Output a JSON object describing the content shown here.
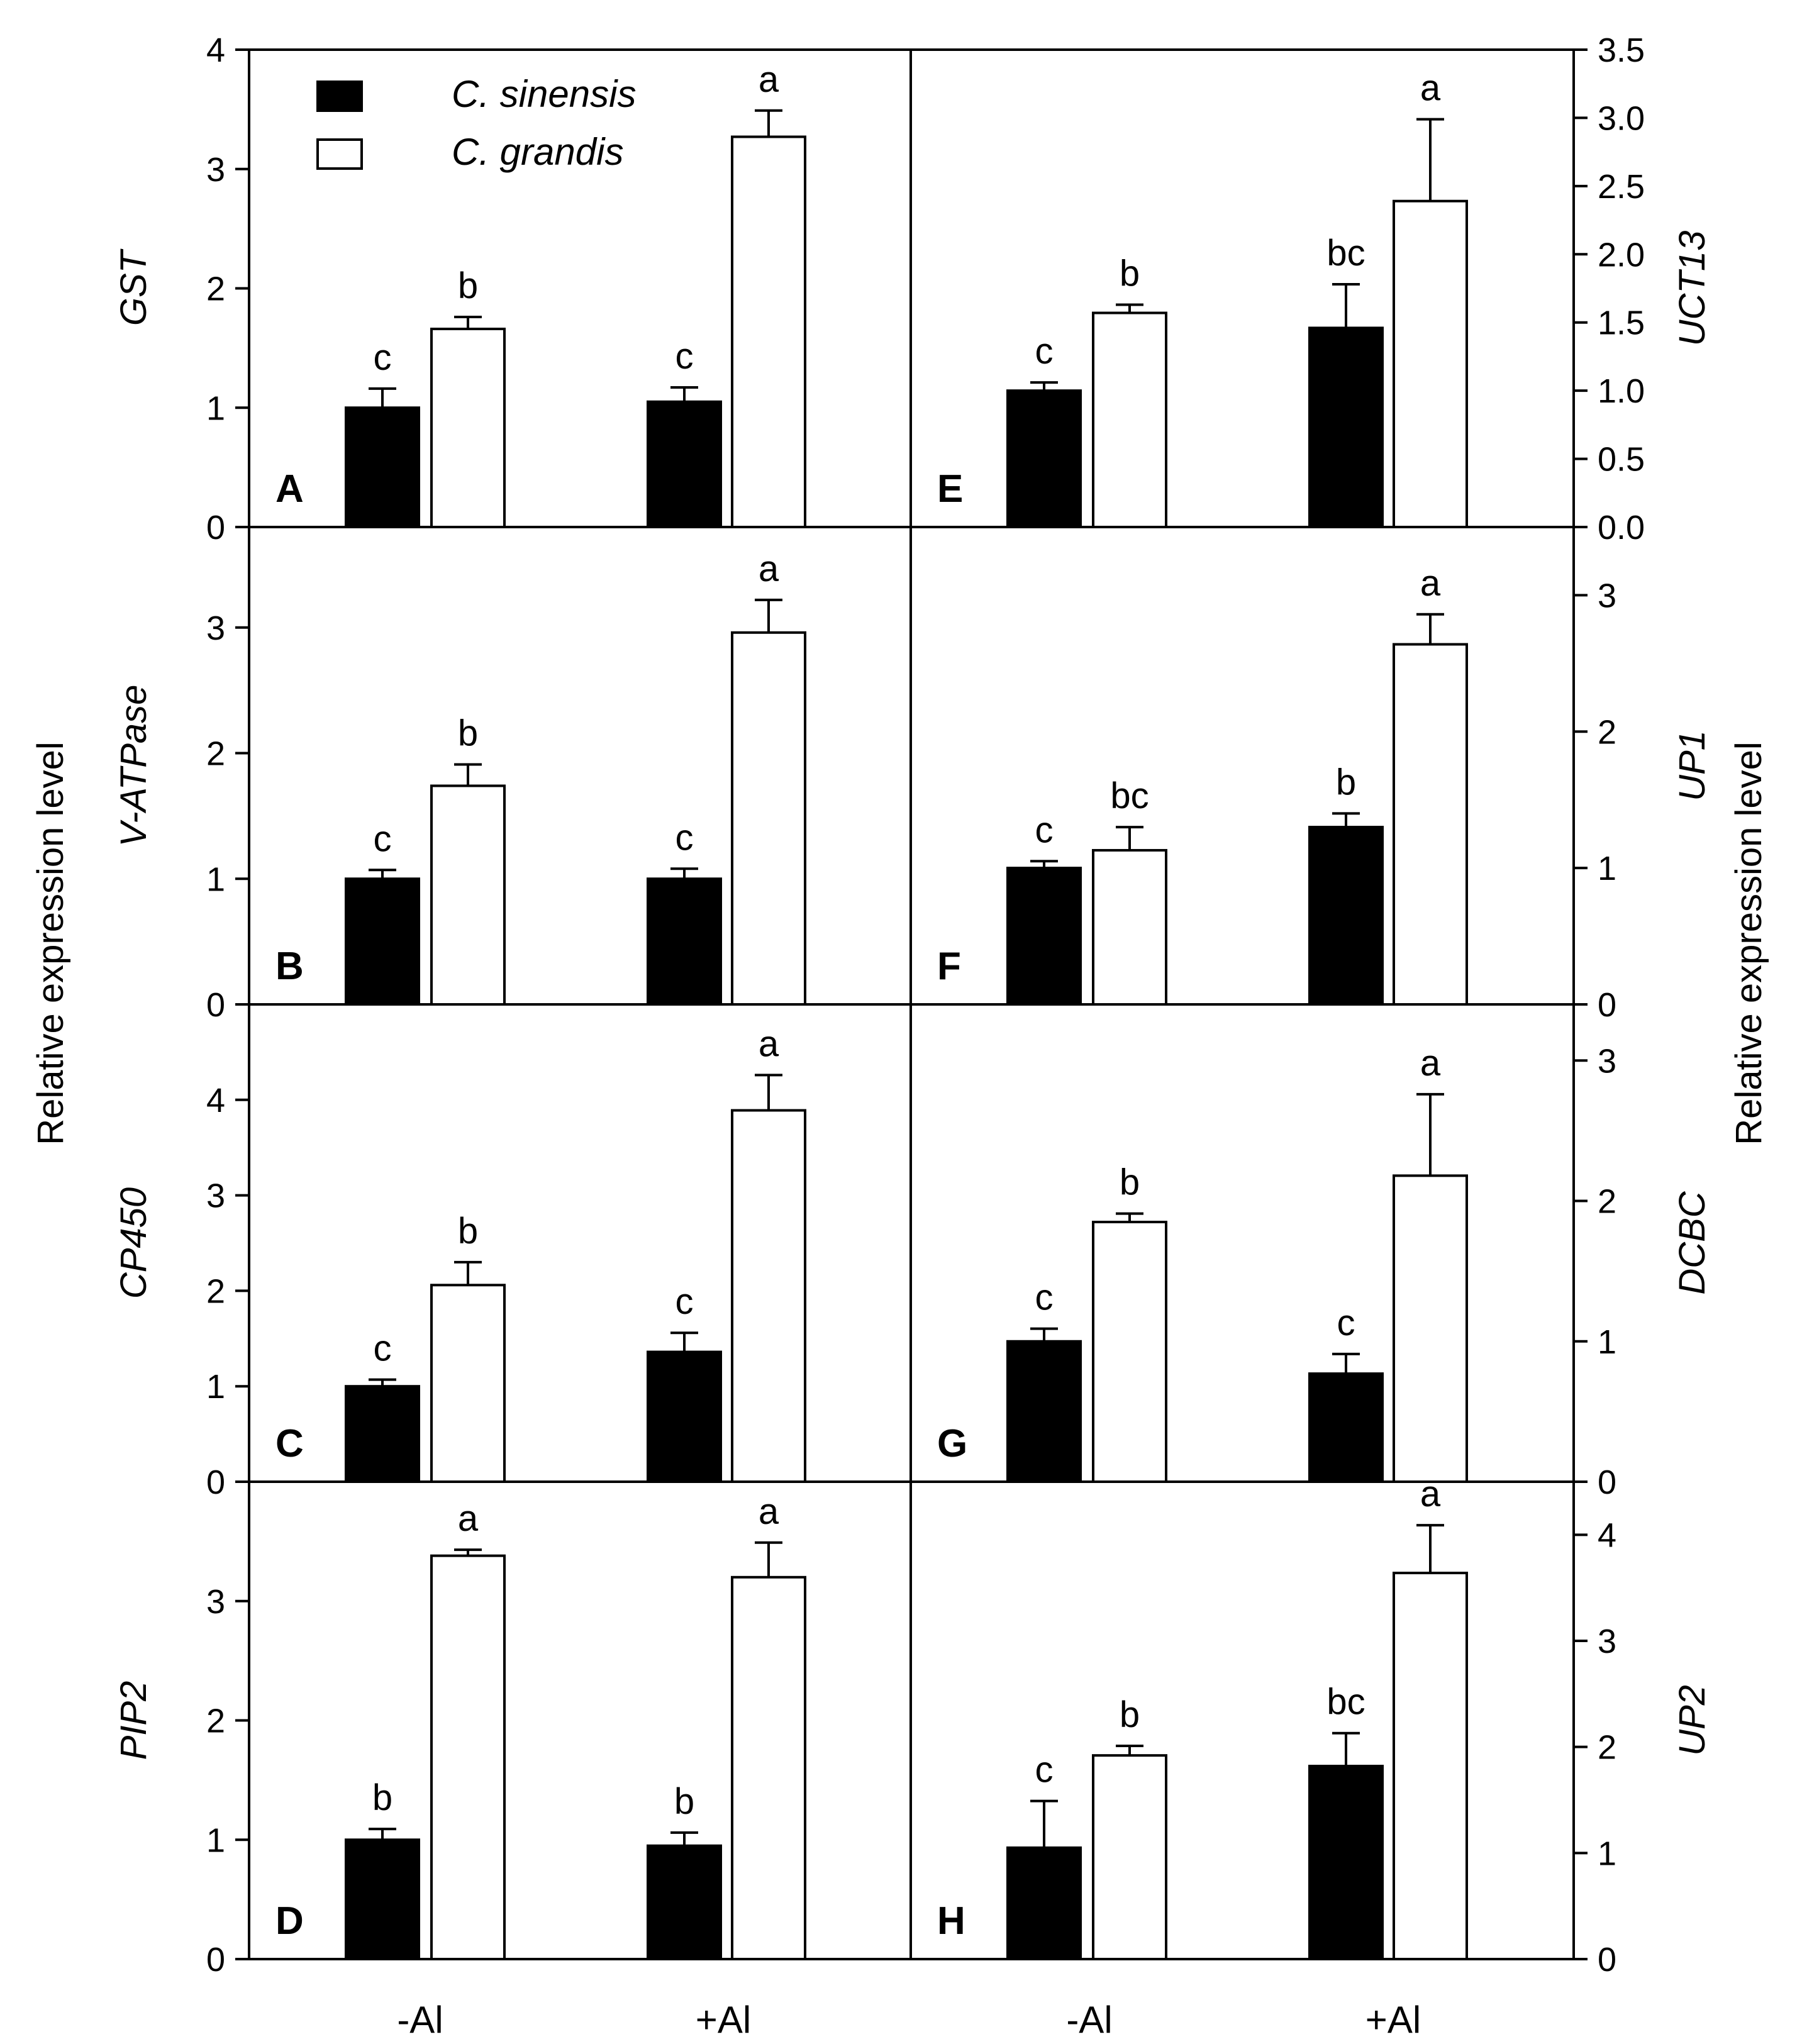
{
  "chart_data": {
    "type": "bar",
    "categories": [
      "-Al",
      "+Al"
    ],
    "legend": [
      {
        "name": "C. sinensis",
        "color": "#000000"
      },
      {
        "name": "C. grandis",
        "color": "#ffffff"
      }
    ],
    "common_ylabel_left": "Relative expression level",
    "common_ylabel_right": "Relative expression level",
    "panels": [
      {
        "letter": "A",
        "gene": "GST",
        "ylim": [
          0,
          4
        ],
        "ticks": [
          "0",
          "1",
          "2",
          "3",
          "4"
        ],
        "series": [
          {
            "name": "C. sinensis",
            "values": [
              1.0,
              1.05
            ],
            "errors": [
              0.16,
              0.12
            ],
            "labels": [
              "c",
              "c"
            ]
          },
          {
            "name": "C. grandis",
            "values": [
              1.66,
              3.27
            ],
            "errors": [
              0.1,
              0.22
            ],
            "labels": [
              "b",
              "a"
            ]
          }
        ]
      },
      {
        "letter": "B",
        "gene": "V-ATPase",
        "ylim": [
          0,
          3.8
        ],
        "ticks": [
          "0",
          "1",
          "2",
          "3"
        ],
        "series": [
          {
            "name": "C. sinensis",
            "values": [
              1.0,
              1.0
            ],
            "errors": [
              0.07,
              0.08
            ],
            "labels": [
              "c",
              "c"
            ]
          },
          {
            "name": "C. grandis",
            "values": [
              1.74,
              2.96
            ],
            "errors": [
              0.17,
              0.26
            ],
            "labels": [
              "b",
              "a"
            ]
          }
        ]
      },
      {
        "letter": "C",
        "gene": "CP450",
        "ylim": [
          0,
          5
        ],
        "ticks": [
          "0",
          "1",
          "2",
          "3",
          "4"
        ],
        "series": [
          {
            "name": "C. sinensis",
            "values": [
              1.0,
              1.36
            ],
            "errors": [
              0.07,
              0.2
            ],
            "labels": [
              "c",
              "c"
            ]
          },
          {
            "name": "C. grandis",
            "values": [
              2.06,
              3.89
            ],
            "errors": [
              0.24,
              0.37
            ],
            "labels": [
              "b",
              "a"
            ]
          }
        ]
      },
      {
        "letter": "D",
        "gene": "PIP2",
        "ylim": [
          0,
          4
        ],
        "ticks": [
          "0",
          "1",
          "2",
          "3"
        ],
        "series": [
          {
            "name": "C. sinensis",
            "values": [
              1.0,
              0.95
            ],
            "errors": [
              0.09,
              0.11
            ],
            "labels": [
              "b",
              "b"
            ]
          },
          {
            "name": "C. grandis",
            "values": [
              3.38,
              3.2
            ],
            "errors": [
              0.05,
              0.29
            ],
            "labels": [
              "a",
              "a"
            ]
          }
        ]
      },
      {
        "letter": "E",
        "gene": "UCT13",
        "ylim": [
          0,
          3.5
        ],
        "ticks": [
          "0.0",
          "0.5",
          "1.0",
          "1.5",
          "2.0",
          "2.5",
          "3.0",
          "3.5"
        ],
        "series": [
          {
            "name": "C. sinensis",
            "values": [
              1.0,
              1.46
            ],
            "errors": [
              0.06,
              0.32
            ],
            "labels": [
              "c",
              "bc"
            ]
          },
          {
            "name": "C. grandis",
            "values": [
              1.57,
              2.39
            ],
            "errors": [
              0.06,
              0.6
            ],
            "labels": [
              "b",
              "a"
            ]
          }
        ]
      },
      {
        "letter": "F",
        "gene": "UP1",
        "ylim": [
          0,
          3.5
        ],
        "ticks": [
          "0",
          "1",
          "2",
          "3"
        ],
        "series": [
          {
            "name": "C. sinensis",
            "values": [
              1.0,
              1.3
            ],
            "errors": [
              0.05,
              0.1
            ],
            "labels": [
              "c",
              "b"
            ]
          },
          {
            "name": "C. grandis",
            "values": [
              1.13,
              2.64
            ],
            "errors": [
              0.17,
              0.22
            ],
            "labels": [
              "bc",
              "a"
            ]
          }
        ]
      },
      {
        "letter": "G",
        "gene": "DCBC",
        "ylim": [
          0,
          3.4
        ],
        "ticks": [
          "0",
          "1",
          "2",
          "3"
        ],
        "series": [
          {
            "name": "C. sinensis",
            "values": [
              1.0,
              0.77
            ],
            "errors": [
              0.09,
              0.14
            ],
            "labels": [
              "c",
              "c"
            ]
          },
          {
            "name": "C. grandis",
            "values": [
              1.85,
              2.18
            ],
            "errors": [
              0.06,
              0.58
            ],
            "labels": [
              "b",
              "a"
            ]
          }
        ]
      },
      {
        "letter": "H",
        "gene": "UP2",
        "ylim": [
          0,
          4.5
        ],
        "ticks": [
          "0",
          "1",
          "2",
          "3",
          "4"
        ],
        "series": [
          {
            "name": "C. sinensis",
            "values": [
              1.05,
              1.82
            ],
            "errors": [
              0.44,
              0.31
            ],
            "labels": [
              "c",
              "bc"
            ]
          },
          {
            "name": "C. grandis",
            "values": [
              1.92,
              3.64
            ],
            "errors": [
              0.09,
              0.45
            ],
            "labels": [
              "b",
              "a"
            ]
          }
        ]
      }
    ]
  }
}
